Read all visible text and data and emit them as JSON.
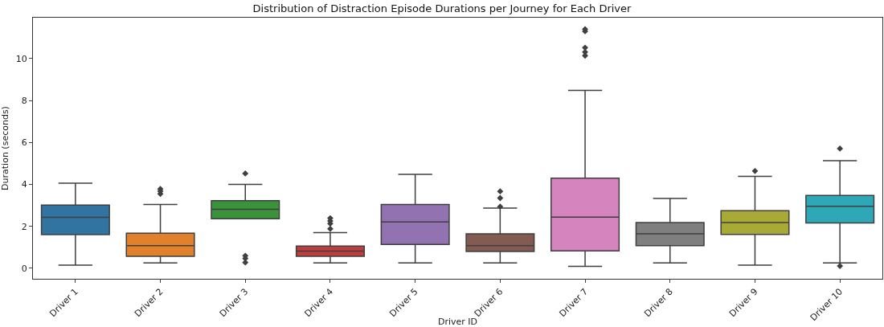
{
  "chart_data": {
    "type": "box",
    "title": "Distribution of Distraction Episode Durations per Journey for Each Driver",
    "xlabel": "Driver ID",
    "ylabel": "Duration (seconds)",
    "categories": [
      "Driver 1",
      "Driver 2",
      "Driver 3",
      "Driver 4",
      "Driver 5",
      "Driver 6",
      "Driver 7",
      "Driver 8",
      "Driver 9",
      "Driver 10"
    ],
    "colors": [
      "#3274a1",
      "#e1812c",
      "#3a923a",
      "#c03d3e",
      "#9372b2",
      "#845b53",
      "#d684bd",
      "#7f7f7f",
      "#a9aa35",
      "#2ea8b6"
    ],
    "boxes": [
      {
        "low": 0.15,
        "q1": 1.61,
        "median": 2.43,
        "q3": 3.01,
        "high": 4.06
      },
      {
        "low": 0.26,
        "q1": 0.57,
        "median": 1.08,
        "q3": 1.67,
        "high": 3.04,
        "outliers": [
          3.55,
          3.68,
          3.78
        ]
      },
      {
        "low": 2.36,
        "q1": 2.36,
        "median": 2.81,
        "q3": 3.23,
        "high": 4.0,
        "outliers": [
          4.52,
          0.6,
          0.47,
          0.28
        ]
      },
      {
        "low": 0.26,
        "q1": 0.57,
        "median": 0.82,
        "q3": 1.06,
        "high": 1.7,
        "outliers": [
          2.39,
          2.26,
          2.13,
          1.88
        ]
      },
      {
        "low": 0.26,
        "q1": 1.14,
        "median": 2.21,
        "q3": 3.04,
        "high": 4.48
      },
      {
        "low": 0.26,
        "q1": 0.8,
        "median": 1.08,
        "q3": 1.65,
        "high": 2.87,
        "outliers": [
          3.67,
          3.35,
          2.94
        ]
      },
      {
        "low": 0.09,
        "q1": 0.83,
        "median": 2.44,
        "q3": 4.3,
        "high": 8.48,
        "outliers": [
          11.4,
          11.3,
          10.52,
          10.31,
          10.14
        ]
      },
      {
        "low": 0.26,
        "q1": 1.08,
        "median": 1.65,
        "q3": 2.18,
        "high": 3.33
      },
      {
        "low": 0.15,
        "q1": 1.62,
        "median": 2.18,
        "q3": 2.75,
        "high": 4.38,
        "outliers": [
          4.64
        ]
      },
      {
        "low": 0.26,
        "q1": 2.16,
        "median": 2.96,
        "q3": 3.47,
        "high": 5.13,
        "outliers": [
          5.71,
          0.11
        ]
      }
    ],
    "ylim": [
      -0.5,
      11.95
    ],
    "yticks": [
      0,
      2,
      4,
      6,
      8,
      10
    ],
    "marker": "diamond"
  }
}
